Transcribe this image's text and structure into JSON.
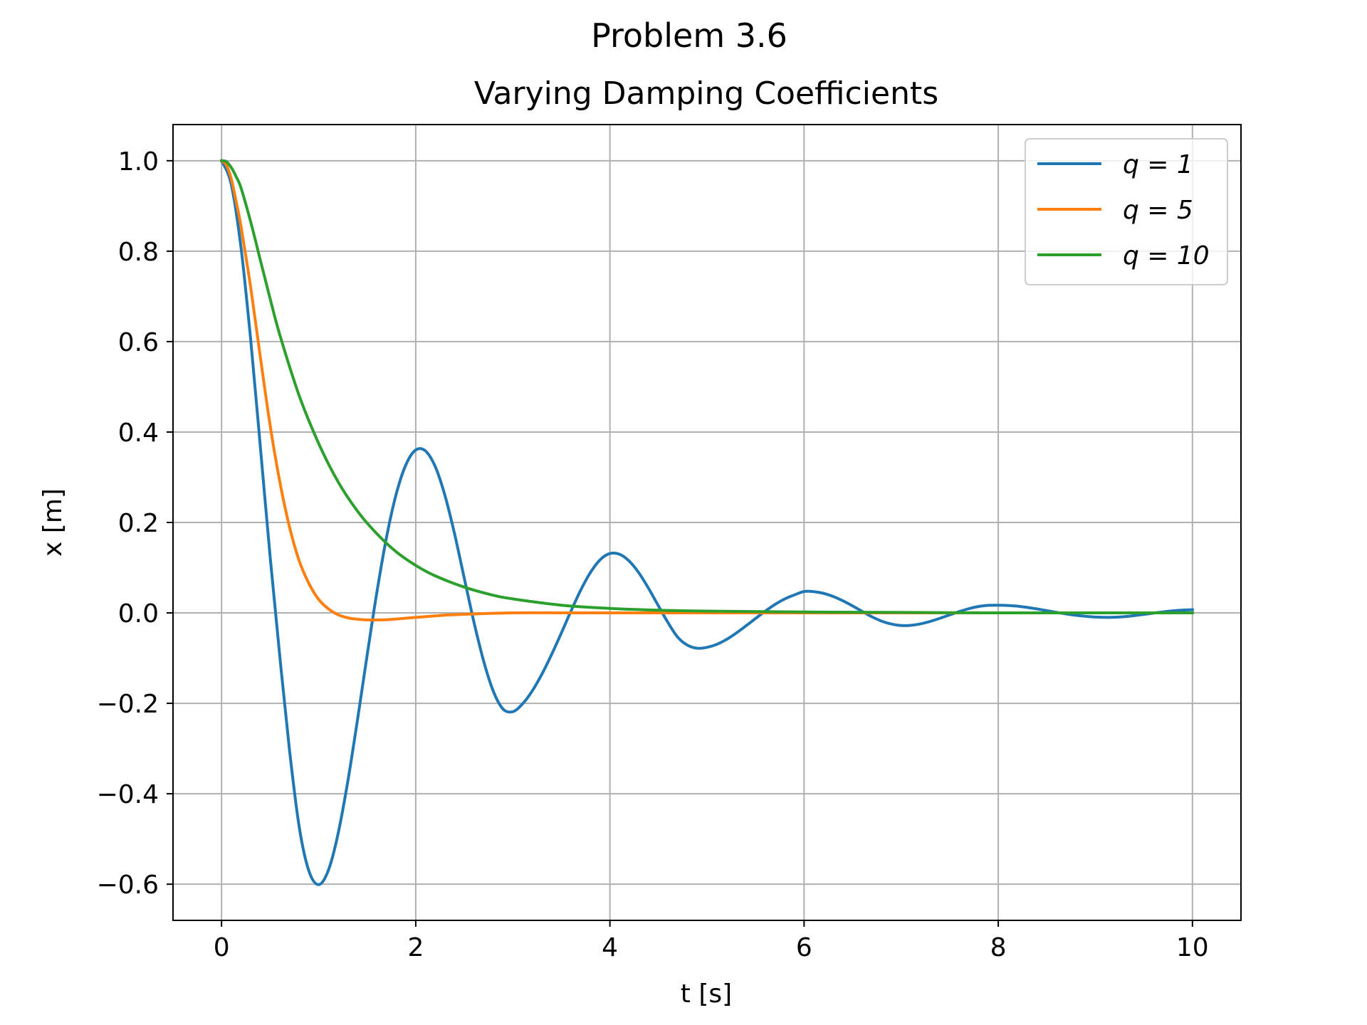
{
  "suptitle": "Problem 3.6",
  "chart_data": {
    "type": "line",
    "title": "Varying Damping Coefficients",
    "xlabel": "t [s]",
    "ylabel": "x [m]",
    "xlim": [
      -0.5,
      10.5
    ],
    "ylim": [
      -0.68,
      1.08
    ],
    "x_ticks": [
      0,
      2,
      4,
      6,
      8,
      10
    ],
    "x_tick_labels": [
      "0",
      "2",
      "4",
      "6",
      "8",
      "10"
    ],
    "y_ticks": [
      1.0,
      0.8,
      0.6,
      0.4,
      0.2,
      0.0,
      -0.2,
      -0.4,
      -0.6
    ],
    "y_tick_labels": [
      "1.0",
      "0.8",
      "0.6",
      "0.4",
      "0.2",
      "0.0",
      "−0.2",
      "−0.4",
      "−0.6"
    ],
    "grid": true,
    "legend_position": "top-right",
    "series": [
      {
        "name": "q = 1",
        "color": "#1f77b4",
        "x": [
          0,
          0.1,
          0.2,
          0.3,
          0.4,
          0.5,
          0.6,
          0.7,
          0.8,
          0.9,
          1.0,
          1.1,
          1.2,
          1.3,
          1.4,
          1.5,
          1.6,
          1.7,
          1.8,
          1.9,
          2.0,
          2.1,
          2.2,
          2.3,
          2.4,
          2.5,
          2.6,
          2.7,
          2.8,
          2.9,
          3.0,
          3.1,
          3.2,
          3.3,
          3.4,
          3.5,
          3.6,
          3.7,
          3.8,
          3.9,
          4.0,
          4.1,
          4.2,
          4.3,
          4.4,
          4.5,
          4.6,
          4.7,
          4.8,
          4.9,
          5.0,
          5.1,
          5.2,
          5.3,
          5.4,
          5.5,
          5.6,
          5.7,
          5.8,
          5.9,
          6.0,
          6.1,
          6.2,
          6.3,
          6.4,
          6.5,
          6.6,
          6.7,
          6.8,
          6.9,
          7.0,
          7.1,
          7.2,
          7.3,
          7.4,
          7.5,
          7.6,
          7.7,
          7.8,
          7.9,
          8.0,
          8.1,
          8.2,
          8.3,
          8.4,
          8.5,
          8.6,
          8.7,
          8.8,
          8.9,
          9.0,
          9.1,
          9.2,
          9.3,
          9.4,
          9.5,
          9.6,
          9.7,
          9.8,
          9.9,
          10.0
        ],
        "y": [
          1.0,
          0.9475,
          0.808,
          0.6045,
          0.3665,
          0.1245,
          -0.0961,
          -0.3033,
          -0.4737,
          -0.5711,
          -0.601,
          -0.5694,
          -0.4885,
          -0.3729,
          -0.2367,
          -0.093,
          0.0462,
          0.1681,
          0.2636,
          0.3283,
          0.3603,
          0.3583,
          0.324,
          0.2604,
          0.1746,
          0.0768,
          -0.0207,
          -0.1071,
          -0.1738,
          -0.2127,
          -0.2184,
          -0.2012,
          -0.1726,
          -0.1353,
          -0.0918,
          -0.0443,
          0.0044,
          0.0506,
          0.0896,
          0.1176,
          0.1313,
          0.1297,
          0.1144,
          0.088,
          0.0536,
          0.0155,
          -0.0222,
          -0.0541,
          -0.0715,
          -0.0781,
          -0.0762,
          -0.0696,
          -0.0588,
          -0.0448,
          -0.0289,
          -0.0124,
          0.0039,
          0.0186,
          0.0307,
          0.0397,
          0.0473,
          0.047,
          0.0433,
          0.0363,
          0.0267,
          0.0153,
          0.0031,
          -0.0087,
          -0.0184,
          -0.0247,
          -0.0279,
          -0.0275,
          -0.0242,
          -0.0188,
          -0.0119,
          -0.0044,
          0.003,
          0.0095,
          0.0142,
          0.0168,
          0.0171,
          0.0165,
          0.0148,
          0.0121,
          0.0087,
          0.005,
          0.0012,
          -0.0023,
          -0.0053,
          -0.0075,
          -0.0092,
          -0.0099,
          -0.0095,
          -0.0082,
          -0.0061,
          -0.0034,
          -0.0004,
          0.0023,
          0.0046,
          0.0062,
          0.007
        ]
      },
      {
        "name": "q = 5",
        "color": "#ff7f0e",
        "x": [
          0,
          0.05,
          0.1,
          0.15,
          0.2,
          0.3,
          0.4,
          0.5,
          0.6,
          0.7,
          0.8,
          0.9,
          1.0,
          1.1,
          1.2,
          1.3,
          1.4,
          1.5,
          1.6,
          1.7,
          1.8,
          2.0,
          2.2,
          2.5,
          3.0,
          3.5,
          4.0,
          5.0,
          6.0,
          7.0,
          8.0,
          9.0,
          10.0
        ],
        "y": [
          1.0,
          0.99,
          0.96,
          0.91,
          0.855,
          0.72,
          0.565,
          0.415,
          0.29,
          0.19,
          0.115,
          0.065,
          0.03,
          0.009,
          -0.004,
          -0.011,
          -0.014,
          -0.0155,
          -0.0155,
          -0.015,
          -0.0135,
          -0.01,
          -0.0065,
          -0.003,
          0.0,
          0.0,
          0.0,
          0.0,
          0.0,
          0.0,
          0.0,
          0.0,
          0.0
        ]
      },
      {
        "name": "q = 10",
        "color": "#2ca02c",
        "x": [
          0,
          0.05,
          0.1,
          0.15,
          0.2,
          0.3,
          0.4,
          0.5,
          0.6,
          0.8,
          1.0,
          1.2,
          1.4,
          1.6,
          1.8,
          2.0,
          2.2,
          2.5,
          2.8,
          3.0,
          3.5,
          4.0,
          4.5,
          5.0,
          6.0,
          7.0,
          8.0,
          9.0,
          10.0
        ],
        "y": [
          1.0,
          0.998,
          0.985,
          0.965,
          0.94,
          0.865,
          0.78,
          0.695,
          0.615,
          0.48,
          0.375,
          0.29,
          0.225,
          0.175,
          0.135,
          0.105,
          0.082,
          0.057,
          0.039,
          0.031,
          0.017,
          0.01,
          0.006,
          0.004,
          0.002,
          0.001,
          0.0,
          0.0,
          0.0
        ]
      }
    ]
  }
}
